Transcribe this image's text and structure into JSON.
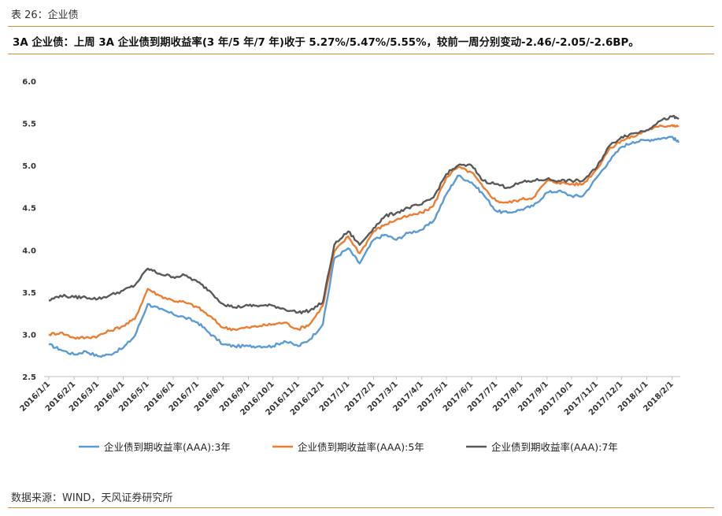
{
  "caption": "表 26：企业债",
  "headline": "3A 企业债：上周 3A 企业债到期收益率(3 年/5 年/7 年)收于 5.27%/5.47%/5.55%，较前一周分别变动-2.46/-2.05/-2.6BP。",
  "source": "数据来源：WIND，天风证券研究所",
  "chart_data": {
    "type": "line",
    "title": "",
    "xlabel": "",
    "ylabel": "",
    "ylim": [
      2.5,
      6.0
    ],
    "yticks": [
      "6.0",
      "5.5",
      "5.0",
      "4.5",
      "4.0",
      "3.5",
      "3.0",
      "2.5"
    ],
    "x_tick_labels": [
      "2016/1/1",
      "2016/2/1",
      "2016/3/1",
      "2016/4/1",
      "2016/5/1",
      "2016/6/1",
      "2016/7/1",
      "2016/8/1",
      "2016/9/1",
      "2016/10/1",
      "2016/11/1",
      "2016/12/1",
      "2017/1/1",
      "2017/2/1",
      "2017/3/1",
      "2017/4/1",
      "2017/5/1",
      "2017/6/1",
      "2017/7/1",
      "2017/8/1",
      "2017/9/1",
      "2017/10/1",
      "2017/11/1",
      "2017/12/1",
      "2018/1/1",
      "2018/2/1"
    ],
    "grid": false,
    "legend_position": "bottom",
    "x": [
      "2016-01-01",
      "2016-01-15",
      "2016-02-01",
      "2016-02-15",
      "2016-03-01",
      "2016-03-15",
      "2016-04-01",
      "2016-04-15",
      "2016-05-01",
      "2016-05-15",
      "2016-06-01",
      "2016-06-15",
      "2016-07-01",
      "2016-07-15",
      "2016-08-01",
      "2016-08-15",
      "2016-09-01",
      "2016-09-15",
      "2016-10-01",
      "2016-10-15",
      "2016-11-01",
      "2016-11-15",
      "2016-12-01",
      "2016-12-15",
      "2017-01-01",
      "2017-01-15",
      "2017-02-01",
      "2017-02-15",
      "2017-03-01",
      "2017-03-15",
      "2017-04-01",
      "2017-04-15",
      "2017-05-01",
      "2017-05-15",
      "2017-06-01",
      "2017-06-15",
      "2017-07-01",
      "2017-07-15",
      "2017-08-01",
      "2017-08-15",
      "2017-09-01",
      "2017-09-15",
      "2017-10-01",
      "2017-10-15",
      "2017-11-01",
      "2017-11-15",
      "2017-12-01",
      "2017-12-15",
      "2018-01-01",
      "2018-01-15",
      "2018-02-01",
      "2018-02-09"
    ],
    "series": [
      {
        "name": "企业债到期收益率(AAA):3年",
        "color": "#5b9bd5",
        "values": [
          2.88,
          2.82,
          2.76,
          2.8,
          2.74,
          2.76,
          2.84,
          2.98,
          3.36,
          3.3,
          3.24,
          3.2,
          3.14,
          3.02,
          2.88,
          2.86,
          2.86,
          2.86,
          2.86,
          2.92,
          2.86,
          2.94,
          3.12,
          3.9,
          4.02,
          3.84,
          4.12,
          4.18,
          4.12,
          4.2,
          4.24,
          4.34,
          4.66,
          4.88,
          4.8,
          4.66,
          4.46,
          4.44,
          4.48,
          4.52,
          4.68,
          4.7,
          4.64,
          4.64,
          4.86,
          5.04,
          5.22,
          5.28,
          5.3,
          5.32,
          5.34,
          5.27
        ]
      },
      {
        "name": "企业债到期收益率(AAA):5年",
        "color": "#ed7d31",
        "values": [
          3.0,
          3.02,
          2.96,
          2.96,
          2.98,
          3.04,
          3.1,
          3.18,
          3.54,
          3.46,
          3.4,
          3.38,
          3.32,
          3.22,
          3.08,
          3.06,
          3.08,
          3.1,
          3.12,
          3.14,
          3.06,
          3.12,
          3.34,
          3.98,
          4.16,
          3.96,
          4.22,
          4.3,
          4.36,
          4.4,
          4.44,
          4.52,
          4.86,
          4.98,
          4.92,
          4.74,
          4.58,
          4.56,
          4.6,
          4.62,
          4.82,
          4.8,
          4.78,
          4.78,
          4.96,
          5.18,
          5.3,
          5.34,
          5.42,
          5.46,
          5.48,
          5.47
        ]
      },
      {
        "name": "企业债到期收益率(AAA):7年",
        "color": "#595959",
        "values": [
          3.4,
          3.46,
          3.44,
          3.44,
          3.42,
          3.46,
          3.52,
          3.58,
          3.78,
          3.72,
          3.68,
          3.7,
          3.62,
          3.52,
          3.36,
          3.32,
          3.34,
          3.34,
          3.34,
          3.3,
          3.26,
          3.28,
          3.38,
          4.06,
          4.22,
          4.06,
          4.26,
          4.4,
          4.44,
          4.5,
          4.54,
          4.62,
          4.9,
          5.0,
          5.0,
          4.82,
          4.78,
          4.74,
          4.8,
          4.82,
          4.84,
          4.82,
          4.82,
          4.82,
          4.98,
          5.22,
          5.34,
          5.38,
          5.42,
          5.52,
          5.58,
          5.55
        ]
      }
    ]
  }
}
